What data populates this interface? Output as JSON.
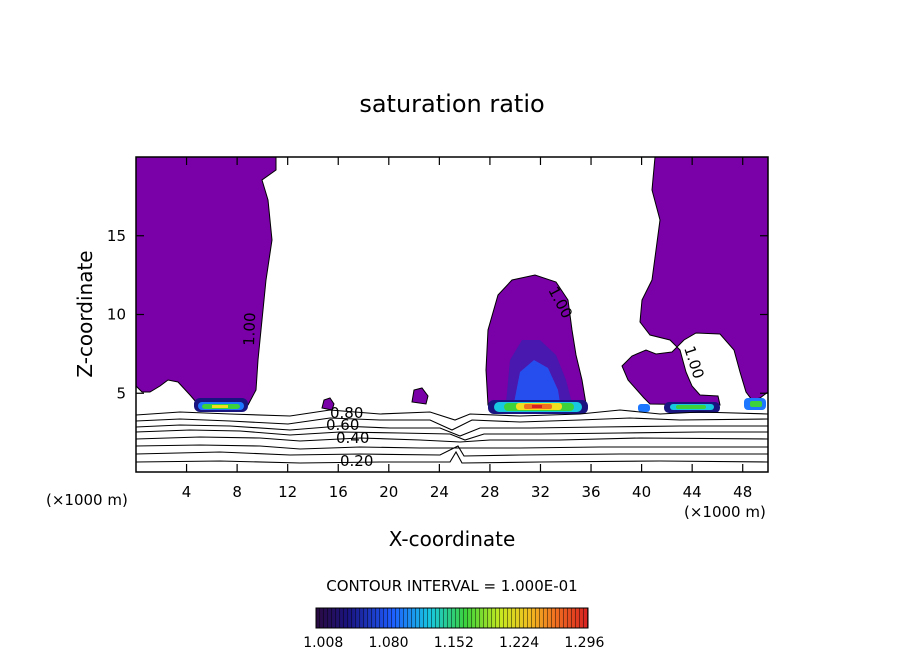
{
  "chart_data": {
    "type": "contour",
    "title": "saturation ratio",
    "xlabel": "X-coordinate",
    "ylabel": "Z-coordinate",
    "x_unit": "(×1000 m)",
    "y_unit": "(×1000 m)",
    "xlim": [
      0,
      50
    ],
    "ylim": [
      0,
      20
    ],
    "x_ticks": [
      "4",
      "8",
      "12",
      "16",
      "20",
      "24",
      "28",
      "32",
      "36",
      "40",
      "44",
      "48"
    ],
    "y_ticks": [
      "5",
      "10",
      "15"
    ],
    "contour_interval_text": "CONTOUR INTERVAL = 1.000E-01",
    "contour_labels": [
      "0.20",
      "0.40",
      "0.60",
      "0.80",
      "1.00",
      "1.00",
      "1.00"
    ],
    "colorbar_ticks": [
      "1.008",
      "1.080",
      "1.152",
      "1.224",
      "1.296"
    ],
    "colorbar_range": [
      1.0,
      1.3
    ],
    "fill_colors": {
      "saturated": "#7a00a8",
      "low": "#1a1480",
      "mid": "#1e78ff",
      "cyan": "#18c8e0",
      "green": "#3cd23c",
      "yellow": "#f0e020",
      "orange": "#f08020",
      "red": "#d82020"
    }
  }
}
